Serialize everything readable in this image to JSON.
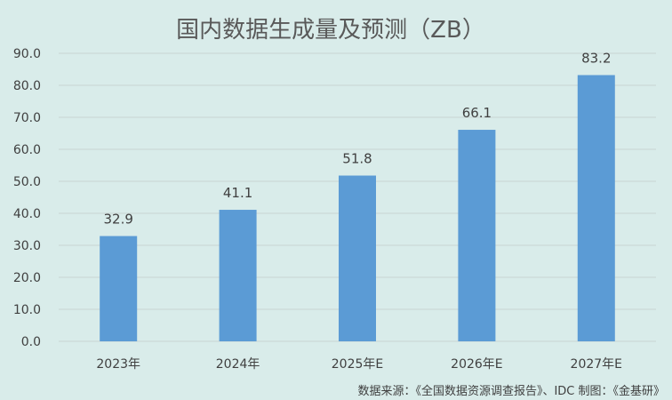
{
  "chart_data": {
    "type": "bar",
    "title": "国内数据生成量及预测（ZB）",
    "categories": [
      "2023年",
      "2024年",
      "2025年E",
      "2026年E",
      "2027年E"
    ],
    "values": [
      32.9,
      41.1,
      51.8,
      66.1,
      83.2
    ],
    "data_labels": [
      "32.9",
      "41.1",
      "51.8",
      "66.1",
      "83.2"
    ],
    "ylim": [
      0,
      90
    ],
    "yticks": [
      "0.0",
      "10.0",
      "20.0",
      "30.0",
      "40.0",
      "50.0",
      "60.0",
      "70.0",
      "80.0",
      "90.0"
    ],
    "xlabel": "",
    "ylabel": "",
    "grid": true,
    "legend": "none",
    "colors": {
      "bar": "#5b9bd5",
      "grid": "#c9d3d2",
      "background": "#d9ecea"
    }
  },
  "source_note": "数据来源：《全国数据资源调查报告》、IDC   制图：《金基研》"
}
